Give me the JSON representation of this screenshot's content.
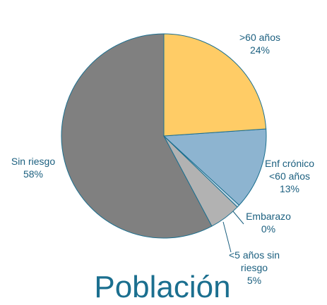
{
  "chart_data": {
    "type": "pie",
    "title": "Población",
    "categories": [
      ">60 años",
      "Enf crónico <60 años",
      "Embarazo",
      "<5 años sin riesgo",
      "Sin riesgo"
    ],
    "values": [
      24,
      13,
      0.4,
      5,
      58
    ],
    "value_labels": [
      "24%",
      "13%",
      "0%",
      "5%",
      "58%"
    ],
    "colors": [
      "#FFCC66",
      "#8DB4D0",
      "#C9DDEA",
      "#B2B2B2",
      "#808080"
    ]
  }
}
